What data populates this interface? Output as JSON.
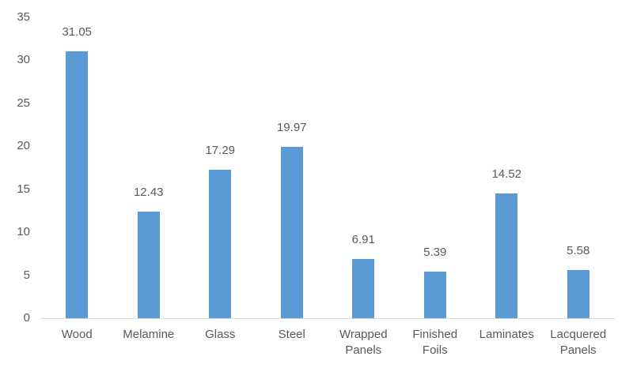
{
  "chart_data": {
    "type": "bar",
    "title": "",
    "xlabel": "",
    "ylabel": "",
    "categories": [
      "Wood",
      "Melamine",
      "Glass",
      "Steel",
      "Wrapped Panels",
      "Finished Foils",
      "Laminates",
      "Lacquered Panels"
    ],
    "values": [
      31.05,
      12.43,
      17.29,
      19.97,
      6.91,
      5.39,
      14.52,
      5.58
    ],
    "data_labels": [
      "31.05",
      "12.43",
      "17.29",
      "19.97",
      "6.91",
      "5.39",
      "14.52",
      "5.58"
    ],
    "ylim": [
      0,
      35
    ],
    "ytick_interval": 5,
    "ytick_labels": [
      "0",
      "5",
      "10",
      "15",
      "20",
      "25",
      "30",
      "35"
    ],
    "grid": false,
    "legend": "none",
    "colors": {
      "bar_fill": "#5b9bd5",
      "label_text": "#595959",
      "axis_line": "#d9d9d9",
      "background": "#ffffff"
    }
  }
}
